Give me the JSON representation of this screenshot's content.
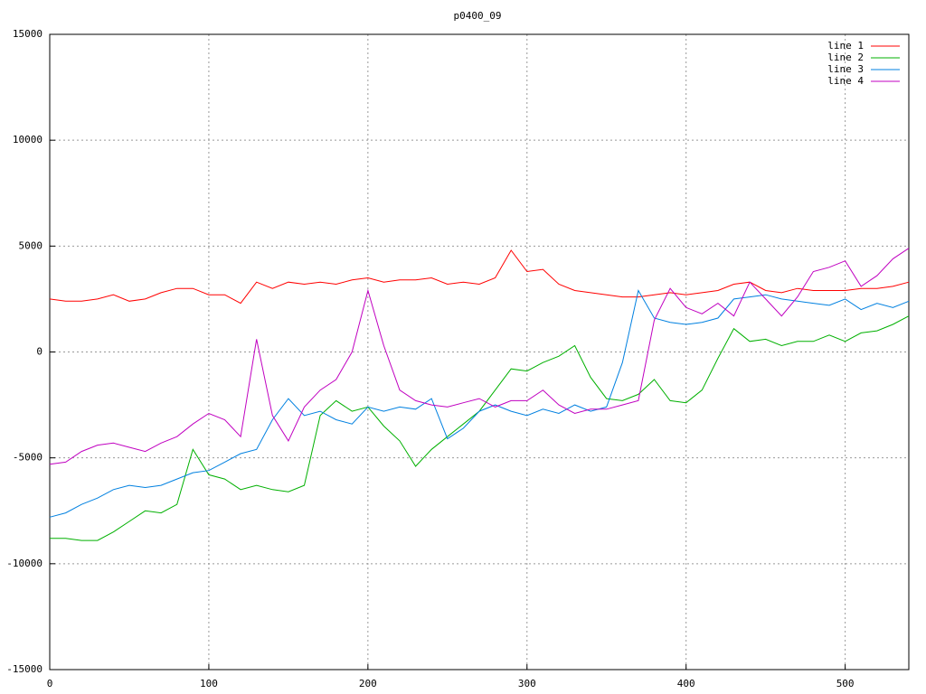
{
  "chart_data": {
    "type": "line",
    "title": "p0400_09",
    "x": [
      0,
      10,
      20,
      30,
      40,
      50,
      60,
      70,
      80,
      90,
      100,
      110,
      120,
      130,
      140,
      150,
      160,
      170,
      180,
      190,
      200,
      210,
      220,
      230,
      240,
      250,
      260,
      270,
      280,
      290,
      300,
      310,
      320,
      330,
      340,
      350,
      360,
      370,
      380,
      390,
      400,
      410,
      420,
      430,
      440,
      450,
      460,
      470,
      480,
      490,
      500,
      510,
      520,
      530,
      540
    ],
    "series": [
      {
        "name": "line 1",
        "color": "#ff0000",
        "values": [
          2500,
          2400,
          2400,
          2500,
          2700,
          2400,
          2500,
          2800,
          3000,
          3000,
          2700,
          2700,
          2300,
          3300,
          3000,
          3300,
          3200,
          3300,
          3200,
          3400,
          3500,
          3300,
          3400,
          3400,
          3500,
          3200,
          3300,
          3200,
          3500,
          4800,
          3800,
          3900,
          3200,
          2900,
          2800,
          2700,
          2600,
          2600,
          2700,
          2800,
          2700,
          2800,
          2900,
          3200,
          3300,
          2900,
          2800,
          3000,
          2900,
          2900,
          2900,
          3000,
          3000,
          3100,
          3300
        ]
      },
      {
        "name": "line 2",
        "color": "#00b000",
        "values": [
          -8800,
          -8800,
          -8900,
          -8900,
          -8500,
          -8000,
          -7500,
          -7600,
          -7200,
          -4600,
          -5800,
          -6000,
          -6500,
          -6300,
          -6500,
          -6600,
          -6300,
          -3000,
          -2300,
          -2800,
          -2600,
          -3500,
          -4200,
          -5400,
          -4600,
          -4000,
          -3400,
          -2800,
          -1800,
          -800,
          -900,
          -500,
          -200,
          300,
          -1200,
          -2200,
          -2300,
          -2000,
          -1300,
          -2300,
          -2400,
          -1800,
          -300,
          1100,
          500,
          600,
          300,
          500,
          500,
          800,
          500,
          900,
          1000,
          1300,
          1700
        ]
      },
      {
        "name": "line 3",
        "color": "#0080e0",
        "values": [
          -7800,
          -7600,
          -7200,
          -6900,
          -6500,
          -6300,
          -6400,
          -6300,
          -6000,
          -5700,
          -5600,
          -5200,
          -4800,
          -4600,
          -3200,
          -2200,
          -3000,
          -2800,
          -3200,
          -3400,
          -2600,
          -2800,
          -2600,
          -2700,
          -2200,
          -4100,
          -3600,
          -2800,
          -2500,
          -2800,
          -3000,
          -2700,
          -2900,
          -2500,
          -2800,
          -2600,
          -500,
          2900,
          1600,
          1400,
          1300,
          1400,
          1600,
          2500,
          2600,
          2700,
          2500,
          2400,
          2300,
          2200,
          2500,
          2000,
          2300,
          2100,
          2400
        ]
      },
      {
        "name": "line 4",
        "color": "#c000c0",
        "values": [
          -5300,
          -5200,
          -4700,
          -4400,
          -4300,
          -4500,
          -4700,
          -4300,
          -4000,
          -3400,
          -2900,
          -3200,
          -4000,
          600,
          -3000,
          -4200,
          -2600,
          -1800,
          -1300,
          0,
          2900,
          300,
          -1800,
          -2300,
          -2500,
          -2600,
          -2400,
          -2200,
          -2600,
          -2300,
          -2300,
          -1800,
          -2500,
          -2900,
          -2700,
          -2700,
          -2500,
          -2300,
          1500,
          3000,
          2100,
          1800,
          2300,
          1700,
          3300,
          2500,
          1700,
          2600,
          3800,
          4000,
          4300,
          3100,
          3600,
          4400,
          4900
        ]
      }
    ],
    "xlim": [
      0,
      540
    ],
    "xticks": [
      0,
      100,
      200,
      300,
      400,
      500
    ],
    "ylim": [
      -15000,
      15000
    ],
    "yticks": [
      -15000,
      -10000,
      -5000,
      0,
      5000,
      10000,
      15000
    ],
    "grid": true,
    "legend": "top-right"
  }
}
